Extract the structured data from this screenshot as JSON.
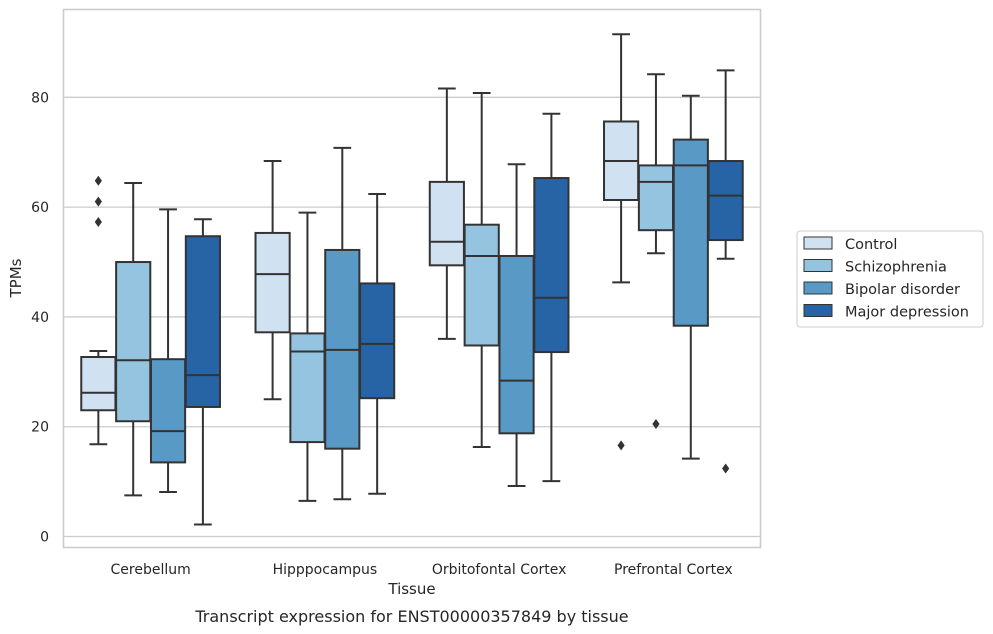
{
  "chart_data": {
    "type": "box",
    "caption": "Transcript expression for ENST00000357849 by tissue",
    "xlabel": "Tissue",
    "ylabel": "TPMs",
    "ylim": [
      -2,
      96
    ],
    "yticks": [
      0,
      20,
      40,
      60,
      80
    ],
    "grid": "horizontal",
    "legend_placement": "right",
    "categories": [
      "Cerebellum",
      "Hipppocampus",
      "Orbitofontal Cortex",
      "Prefrontal Cortex"
    ],
    "series": [
      {
        "name": "Control",
        "color": "#d0e1f2",
        "boxes": [
          {
            "whislo": 16.8,
            "q1": 23.0,
            "med": 26.2,
            "q3": 32.7,
            "whishi": 33.8,
            "fliers": [
              57.3,
              61.0,
              64.8
            ]
          },
          {
            "whislo": 25.0,
            "q1": 37.2,
            "med": 47.8,
            "q3": 55.3,
            "whishi": 68.4,
            "fliers": []
          },
          {
            "whislo": 36.0,
            "q1": 49.4,
            "med": 53.7,
            "q3": 64.6,
            "whishi": 81.6,
            "fliers": []
          },
          {
            "whislo": 46.3,
            "q1": 61.3,
            "med": 68.4,
            "q3": 75.6,
            "whishi": 91.5,
            "fliers": [
              16.6
            ]
          }
        ]
      },
      {
        "name": "Schizophrenia",
        "color": "#94c4df",
        "boxes": [
          {
            "whislo": 7.5,
            "q1": 21.0,
            "med": 32.1,
            "q3": 50.0,
            "whishi": 64.4,
            "fliers": []
          },
          {
            "whislo": 6.5,
            "q1": 17.2,
            "med": 33.7,
            "q3": 37.0,
            "whishi": 59.0,
            "fliers": []
          },
          {
            "whislo": 16.3,
            "q1": 34.8,
            "med": 51.1,
            "q3": 56.8,
            "whishi": 80.8,
            "fliers": []
          },
          {
            "whislo": 51.6,
            "q1": 55.8,
            "med": 64.6,
            "q3": 67.6,
            "whishi": 84.2,
            "fliers": [
              20.5
            ]
          }
        ]
      },
      {
        "name": "Bipolar disorder",
        "color": "#5899c6",
        "boxes": [
          {
            "whislo": 8.1,
            "q1": 13.5,
            "med": 19.2,
            "q3": 32.3,
            "whishi": 59.6,
            "fliers": []
          },
          {
            "whislo": 6.8,
            "q1": 16.0,
            "med": 34.0,
            "q3": 52.2,
            "whishi": 70.8,
            "fliers": []
          },
          {
            "whislo": 9.2,
            "q1": 18.8,
            "med": 28.4,
            "q3": 51.1,
            "whishi": 67.8,
            "fliers": []
          },
          {
            "whislo": 14.2,
            "q1": 38.4,
            "med": 67.6,
            "q3": 72.3,
            "whishi": 80.3,
            "fliers": []
          }
        ]
      },
      {
        "name": "Major depression",
        "color": "#2764a5",
        "boxes": [
          {
            "whislo": 2.2,
            "q1": 23.6,
            "med": 29.4,
            "q3": 54.7,
            "whishi": 57.8,
            "fliers": []
          },
          {
            "whislo": 7.8,
            "q1": 25.2,
            "med": 35.1,
            "q3": 46.1,
            "whishi": 62.4,
            "fliers": []
          },
          {
            "whislo": 10.1,
            "q1": 33.6,
            "med": 43.5,
            "q3": 65.3,
            "whishi": 77.0,
            "fliers": []
          },
          {
            "whislo": 50.6,
            "q1": 54.0,
            "med": 62.1,
            "q3": 68.4,
            "whishi": 84.9,
            "fliers": [
              12.4
            ]
          }
        ]
      }
    ]
  }
}
